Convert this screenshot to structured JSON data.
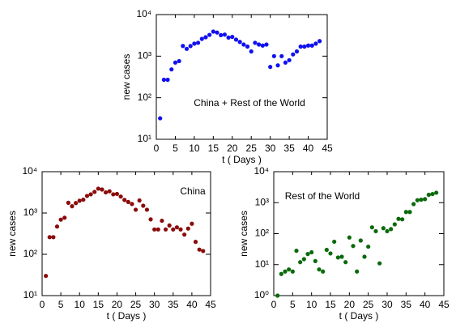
{
  "chart_data": [
    {
      "type": "scatter",
      "annotation": "China + Rest of the World",
      "x_label": "t ( Days )",
      "y_label": "new cases",
      "color": "#1010f0",
      "log_scale": true,
      "x": [
        1,
        2,
        3,
        4,
        5,
        6,
        7,
        8,
        9,
        10,
        11,
        12,
        13,
        14,
        15,
        16,
        17,
        18,
        19,
        20,
        21,
        22,
        23,
        24,
        25,
        26,
        27,
        28,
        29,
        30,
        31,
        32,
        33,
        34,
        35,
        36,
        37,
        38,
        39,
        40,
        41,
        42,
        43
      ],
      "values": [
        32,
        270,
        270,
        480,
        700,
        760,
        1760,
        1500,
        1750,
        2000,
        2100,
        2600,
        2850,
        3250,
        3900,
        3700,
        3200,
        3300,
        2800,
        2900,
        2500,
        2200,
        1900,
        1700,
        1300,
        2100,
        1900,
        1800,
        1900,
        550,
        1000,
        600,
        1000,
        700,
        800,
        1100,
        1300,
        1700,
        1700,
        1800,
        1800,
        2000,
        2300
      ],
      "xlim": [
        0,
        45
      ],
      "xticks": [
        0,
        5,
        10,
        15,
        20,
        25,
        30,
        35,
        40,
        45
      ],
      "ylim": [
        10,
        10000
      ],
      "yticks": [
        {
          "value": 10,
          "label": "10¹"
        },
        {
          "value": 100,
          "label": "10²"
        },
        {
          "value": 1000,
          "label": "10³"
        },
        {
          "value": 10000,
          "label": "10⁴"
        }
      ]
    },
    {
      "type": "scatter",
      "annotation": "China",
      "x_label": "t ( Days )",
      "y_label": "new cases",
      "color": "#8b0a0a",
      "log_scale": true,
      "x": [
        1,
        2,
        3,
        4,
        5,
        6,
        7,
        8,
        9,
        10,
        11,
        12,
        13,
        14,
        15,
        16,
        17,
        18,
        19,
        20,
        21,
        22,
        23,
        24,
        25,
        26,
        27,
        28,
        29,
        30,
        31,
        32,
        33,
        34,
        35,
        36,
        37,
        38,
        39,
        40,
        41,
        42,
        43
      ],
      "values": [
        30,
        260,
        260,
        470,
        690,
        770,
        1770,
        1460,
        1740,
        1980,
        2100,
        2590,
        2830,
        3240,
        3890,
        3700,
        3150,
        3350,
        2830,
        2900,
        2500,
        2070,
        1850,
        1650,
        1200,
        2010,
        1500,
        1200,
        700,
        400,
        400,
        650,
        400,
        500,
        400,
        450,
        400,
        300,
        420,
        550,
        200,
        130,
        120
      ],
      "xlim": [
        0,
        45
      ],
      "xticks": [
        0,
        5,
        10,
        15,
        20,
        25,
        30,
        35,
        40,
        45
      ],
      "ylim": [
        10,
        10000
      ],
      "yticks": [
        {
          "value": 10,
          "label": "10¹"
        },
        {
          "value": 100,
          "label": "10²"
        },
        {
          "value": 1000,
          "label": "10³"
        },
        {
          "value": 10000,
          "label": "10⁴"
        }
      ]
    },
    {
      "type": "scatter",
      "annotation": "Rest of the World",
      "x_label": "t ( Days )",
      "y_label": "new cases",
      "color": "#0a6a0a",
      "log_scale": true,
      "x": [
        1,
        2,
        3,
        4,
        5,
        6,
        7,
        8,
        9,
        10,
        11,
        12,
        13,
        14,
        15,
        16,
        17,
        18,
        19,
        20,
        21,
        22,
        23,
        24,
        25,
        26,
        27,
        28,
        29,
        30,
        31,
        32,
        33,
        34,
        35,
        36,
        37,
        38,
        39,
        40,
        41,
        42,
        43
      ],
      "values": [
        1,
        5,
        6,
        7,
        6,
        28,
        12,
        15,
        22,
        25,
        13,
        7,
        6,
        30,
        23,
        55,
        17,
        18,
        12,
        75,
        40,
        6,
        60,
        18,
        38,
        160,
        120,
        11,
        150,
        120,
        140,
        200,
        300,
        290,
        500,
        500,
        900,
        1200,
        1250,
        1300,
        1800,
        1900,
        2100
      ],
      "xlim": [
        0,
        45
      ],
      "xticks": [
        0,
        5,
        10,
        15,
        20,
        25,
        30,
        35,
        40,
        45
      ],
      "ylim": [
        1,
        10000
      ],
      "yticks": [
        {
          "value": 1,
          "label": "10⁰"
        },
        {
          "value": 10,
          "label": "10¹"
        },
        {
          "value": 100,
          "label": "10²"
        },
        {
          "value": 1000,
          "label": "10³"
        },
        {
          "value": 10000,
          "label": "10⁴"
        }
      ]
    }
  ]
}
